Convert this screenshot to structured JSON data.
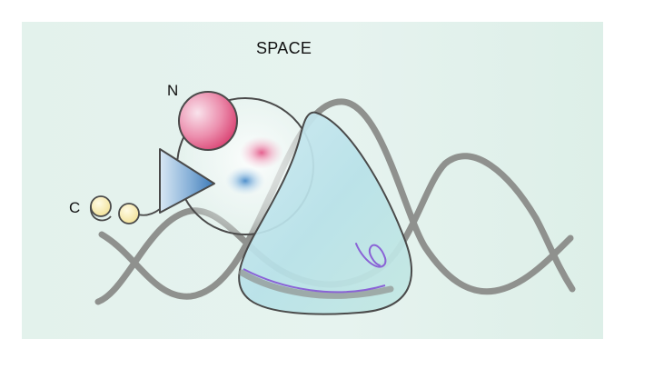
{
  "diagram": {
    "title": "SPACE",
    "labels": {
      "n_terminus": "N",
      "c_terminus": "C"
    },
    "colors": {
      "background": "#e3f2ec",
      "dna_strand": "#8f918e",
      "n_domain_pink": "#e0567e",
      "triangle_blue": "#3c79b7",
      "c_beads_yellow": "#f7e8a6",
      "protein_body_cyan": "#bfe5ea",
      "inner_arc_purple": "#8a63d6",
      "outline": "#4a4a4a"
    },
    "icons": [
      "dna-helix-icon",
      "protein-blob-icon",
      "sphere-icon",
      "triangle-icon",
      "bead-icon"
    ]
  }
}
